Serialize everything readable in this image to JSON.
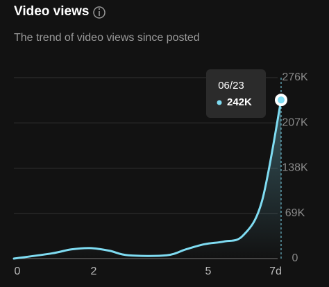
{
  "chart_data": {
    "type": "line",
    "title": "Video views",
    "subtitle": "The trend of video views since posted",
    "x": [
      0,
      1,
      1.5,
      2,
      2.5,
      3,
      4,
      4.5,
      5,
      5.5,
      6,
      6.5,
      7
    ],
    "values": [
      0,
      8000,
      14000,
      16000,
      12000,
      5000,
      5000,
      14000,
      22000,
      26000,
      35000,
      88000,
      242000
    ],
    "value_labels": [
      null,
      null,
      null,
      null,
      null,
      null,
      null,
      null,
      null,
      null,
      null,
      null,
      "242K"
    ],
    "tooltip_label": "06/23",
    "color": "#7fdcf2",
    "xlim": [
      0,
      7
    ],
    "xticks": [
      0,
      2,
      5,
      {
        "value": 7,
        "label": "7d"
      }
    ],
    "ylim": [
      0,
      276000
    ],
    "yticks": [
      0,
      {
        "value": 69000,
        "label": "69K"
      },
      {
        "value": 138000,
        "label": "138K"
      },
      {
        "value": 207000,
        "label": "207K"
      },
      {
        "value": 276000,
        "label": "276K"
      }
    ],
    "grid": true,
    "y_axis_side": "right"
  }
}
